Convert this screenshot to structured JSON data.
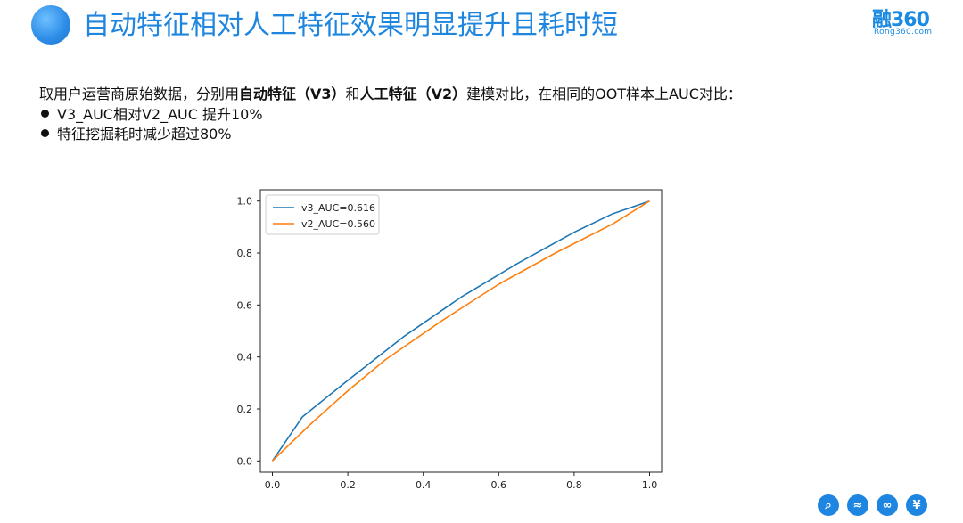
{
  "header": {
    "title": "自动特征相对人工特征效果明显提升且耗时短",
    "logo_main": "融360",
    "logo_sub": "Rong360.com"
  },
  "intro": {
    "part1": "取用户运营商原始数据，分别用",
    "bold1": "自动特征（V3）",
    "part2": "和",
    "bold2": "人工特征（V2）",
    "part3": "建模对比，在相同的OOT样本上AUC对比："
  },
  "bullets": [
    "V3_AUC相对V2_AUC 提升10%",
    "特征挖掘耗时减少超过80%"
  ],
  "chart_data": {
    "type": "line",
    "xlim": [
      0.0,
      1.0
    ],
    "ylim": [
      0.0,
      1.0
    ],
    "x_ticks": [
      "0.0",
      "0.2",
      "0.4",
      "0.6",
      "0.8",
      "1.0"
    ],
    "y_ticks": [
      "0.0",
      "0.2",
      "0.4",
      "0.6",
      "0.8",
      "1.0"
    ],
    "grid": false,
    "legend_position": "top-left",
    "series": [
      {
        "name": "v3_AUC=0.616",
        "color": "#1f77b4",
        "points": [
          [
            0.0,
            0.0
          ],
          [
            0.08,
            0.17
          ],
          [
            0.2,
            0.31
          ],
          [
            0.35,
            0.48
          ],
          [
            0.5,
            0.63
          ],
          [
            0.65,
            0.76
          ],
          [
            0.8,
            0.88
          ],
          [
            0.9,
            0.95
          ],
          [
            1.0,
            1.0
          ]
        ]
      },
      {
        "name": "v2_AUC=0.560",
        "color": "#ff7f0e",
        "points": [
          [
            0.0,
            0.0
          ],
          [
            0.1,
            0.14
          ],
          [
            0.2,
            0.27
          ],
          [
            0.3,
            0.39
          ],
          [
            0.45,
            0.54
          ],
          [
            0.6,
            0.68
          ],
          [
            0.75,
            0.8
          ],
          [
            0.9,
            0.91
          ],
          [
            1.0,
            1.0
          ]
        ]
      }
    ]
  },
  "footer": {
    "icons": [
      {
        "name": "search-icon",
        "glyph": "⌕"
      },
      {
        "name": "share-icon",
        "glyph": "≈"
      },
      {
        "name": "infinity-icon",
        "glyph": "∞"
      },
      {
        "name": "yuan-icon",
        "glyph": "¥"
      }
    ]
  }
}
